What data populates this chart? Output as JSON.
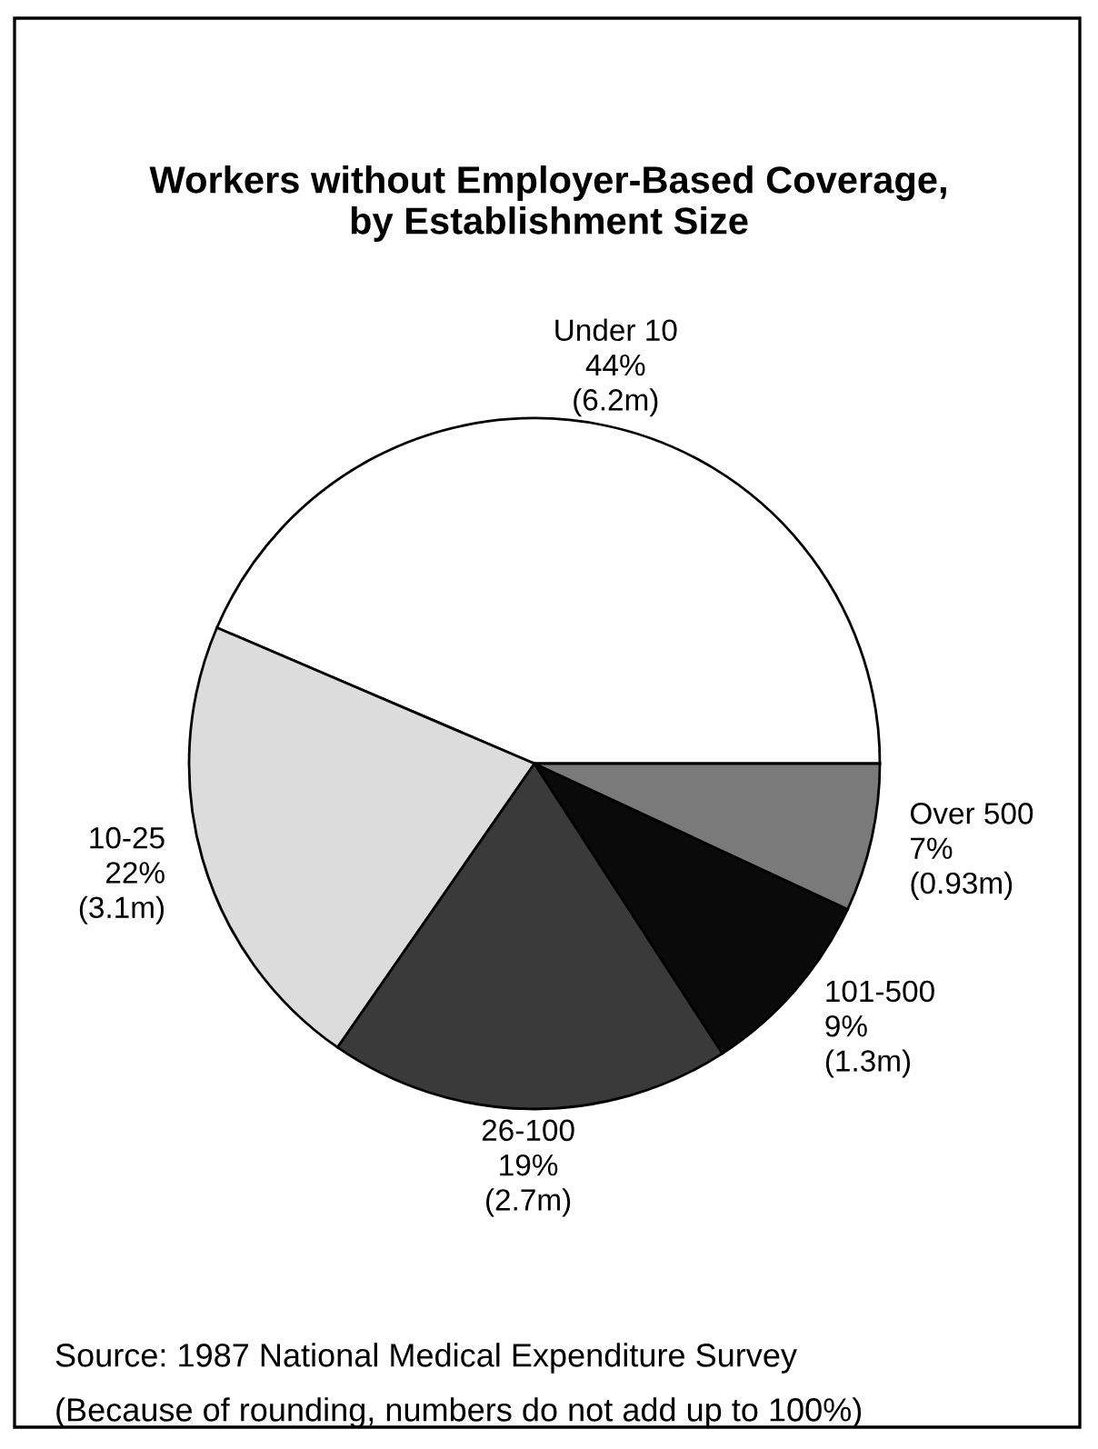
{
  "chart_data": {
    "type": "pie",
    "title": "Workers without Employer-Based Coverage,\nby Establishment Size",
    "categories": [
      "Under 10",
      "10-25",
      "26-100",
      "101-500",
      "Over 500"
    ],
    "values": [
      44,
      22,
      19,
      9,
      7
    ],
    "colors": [
      "#ffffff",
      "#dcdcdc",
      "#3a3a3a",
      "#0a0a0a",
      "#7a7a7a"
    ],
    "value_labels": [
      "44%\n(6.2m)",
      "22%\n(3.1m)",
      "19%\n(2.7m)",
      "9%\n(1.3m)",
      "7%\n(0.93m)"
    ],
    "annotations": [
      "Source: 1987 National Medical Expenditure Survey",
      "(Because of rounding, numbers do not add up to 100%)"
    ],
    "legend": false
  }
}
